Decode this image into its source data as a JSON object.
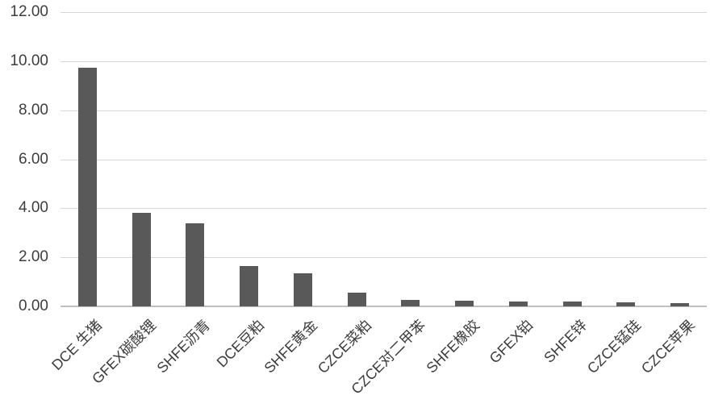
{
  "chart_data": {
    "type": "bar",
    "title": "",
    "xlabel": "",
    "ylabel": "",
    "categories": [
      "DCE 生猪",
      "GFEX碳酸锂",
      "SHFE沥青",
      "DCE豆粕",
      "SHFE黄金",
      "CZCE菜粕",
      "CZCE对二甲苯",
      "SHFE橡胶",
      "GFEX铂",
      "SHFE锌",
      "CZCE锰硅",
      "CZCE苹果"
    ],
    "values": [
      9.74,
      3.83,
      3.4,
      1.66,
      1.36,
      0.55,
      0.25,
      0.22,
      0.19,
      0.19,
      0.18,
      0.14
    ],
    "ylim": [
      0,
      12
    ],
    "yticks": [
      0,
      2,
      4,
      6,
      8,
      10,
      12
    ],
    "ytick_labels": [
      "0.00",
      "2.00",
      "4.00",
      "6.00",
      "8.00",
      "10.00",
      "12.00"
    ],
    "grid": true,
    "legend": false,
    "bar_color": "#595959",
    "gridline_color": "#d6d6d6",
    "axis_line_color": "#bfbfbf",
    "tick_label_color": "#3d3d3d",
    "background_color": "#ffffff"
  }
}
